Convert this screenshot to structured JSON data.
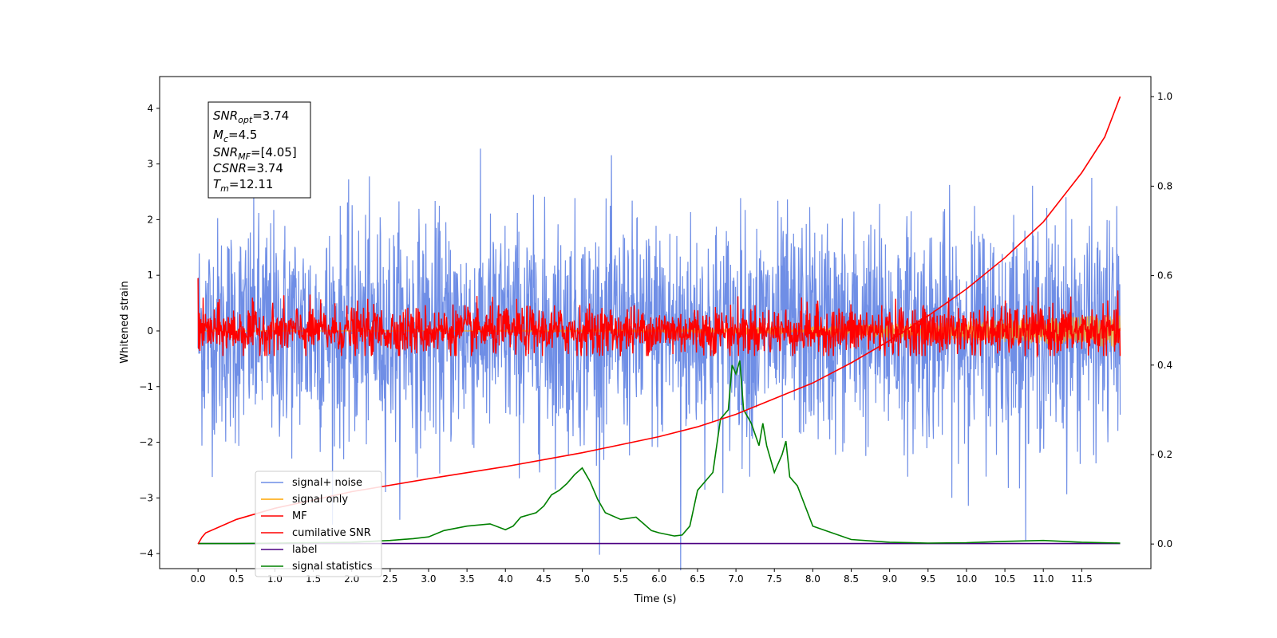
{
  "chart_data": {
    "type": "line",
    "xlabel": "Time (s)",
    "ylabel": "Whitened strain",
    "xlim": [
      -0.5,
      12.4
    ],
    "ylim": [
      -4.27,
      4.57
    ],
    "y2lim": [
      -0.055,
      1.045
    ],
    "x_ticks": [
      "0.0",
      "0.5",
      "1.0",
      "1.5",
      "2.0",
      "2.5",
      "3.0",
      "3.5",
      "4.0",
      "4.5",
      "5.0",
      "5.5",
      "6.0",
      "6.5",
      "7.0",
      "7.5",
      "8.0",
      "8.5",
      "9.0",
      "9.5",
      "10.0",
      "10.5",
      "11.0",
      "11.5"
    ],
    "y_ticks": [
      "4",
      "3",
      "2",
      "1",
      "0",
      "−1",
      "−2",
      "−3",
      "−4"
    ],
    "y2_ticks": [
      "1.0",
      "0.8",
      "0.6",
      "0.4",
      "0.2",
      "0.0"
    ],
    "annotation": {
      "snr_opt": "=3.74",
      "mc": "=4.5",
      "snr_mf": "=[4.05]",
      "csnr": "=3.74",
      "tm": "=12.11"
    },
    "legend": {
      "placement": "lower-left",
      "entries": [
        "signal+ noise",
        "signal only",
        "MF",
        "cumilative SNR",
        "label",
        "signal statistics"
      ]
    },
    "series": [
      {
        "name": "signal+ noise",
        "color": "#6f8ee6",
        "description_values": {
          "mean": 0.0,
          "std": 1.0,
          "x_start": 0.0,
          "x_end": 12.0
        }
      },
      {
        "name": "signal only",
        "color": "#ffa500",
        "description_values": {
          "amplitude_max": 0.3,
          "x_start": 0.0,
          "x_end": 12.0
        }
      },
      {
        "name": "MF",
        "color": "#ff0000",
        "description_values": {
          "mean": 0.0,
          "std": 0.22,
          "x_start": 0.0,
          "x_end": 12.0
        }
      },
      {
        "name": "cumilative SNR",
        "color": "#ff0000",
        "axis": "right",
        "x": [
          0.0,
          0.05,
          0.1,
          0.5,
          1.0,
          2.0,
          3.0,
          4.0,
          5.0,
          6.0,
          6.5,
          7.0,
          7.5,
          8.0,
          8.5,
          9.0,
          9.5,
          10.0,
          10.5,
          11.0,
          11.5,
          11.8,
          12.0
        ],
        "values": [
          0.0,
          0.015,
          0.025,
          0.055,
          0.08,
          0.117,
          0.146,
          0.173,
          0.204,
          0.24,
          0.262,
          0.29,
          0.325,
          0.36,
          0.405,
          0.455,
          0.51,
          0.57,
          0.64,
          0.72,
          0.83,
          0.91,
          1.0
        ]
      },
      {
        "name": "label",
        "color": "#4b0082",
        "axis": "right",
        "x": [
          0.0,
          12.0
        ],
        "values": [
          0.001,
          0.001
        ]
      },
      {
        "name": "signal statistics",
        "color": "#008000",
        "axis": "right",
        "x": [
          0.0,
          0.5,
          1.0,
          1.5,
          2.0,
          2.5,
          2.8,
          3.0,
          3.2,
          3.5,
          3.8,
          4.0,
          4.1,
          4.2,
          4.4,
          4.5,
          4.6,
          4.7,
          4.8,
          4.9,
          5.0,
          5.1,
          5.2,
          5.3,
          5.5,
          5.7,
          5.8,
          5.9,
          6.0,
          6.2,
          6.3,
          6.4,
          6.5,
          6.6,
          6.7,
          6.8,
          6.9,
          6.95,
          7.0,
          7.05,
          7.1,
          7.2,
          7.3,
          7.35,
          7.4,
          7.5,
          7.6,
          7.65,
          7.7,
          7.8,
          8.0,
          8.5,
          9.0,
          9.5,
          10.0,
          10.5,
          11.0,
          11.5,
          12.0
        ],
        "values": [
          0.001,
          0.001,
          0.002,
          0.003,
          0.004,
          0.008,
          0.012,
          0.016,
          0.03,
          0.04,
          0.045,
          0.032,
          0.04,
          0.06,
          0.07,
          0.085,
          0.11,
          0.12,
          0.135,
          0.155,
          0.17,
          0.14,
          0.1,
          0.07,
          0.055,
          0.06,
          0.045,
          0.03,
          0.025,
          0.018,
          0.02,
          0.04,
          0.12,
          0.14,
          0.16,
          0.28,
          0.3,
          0.4,
          0.38,
          0.41,
          0.3,
          0.27,
          0.22,
          0.27,
          0.22,
          0.16,
          0.2,
          0.23,
          0.15,
          0.13,
          0.04,
          0.01,
          0.004,
          0.002,
          0.003,
          0.006,
          0.008,
          0.004,
          0.002
        ]
      }
    ]
  }
}
